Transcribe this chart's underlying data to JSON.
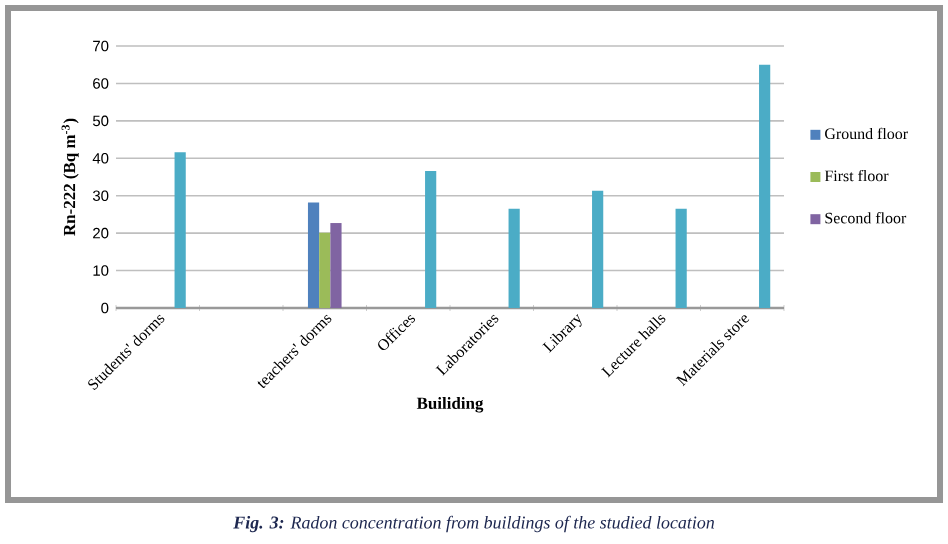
{
  "chart_data": {
    "type": "bar",
    "ylabel": "Rn-222 (Bq m$^{-3}$)",
    "xlabel": "Builiding",
    "categories": [
      "Students' dorms",
      null,
      "teachers' dorms",
      "Offices",
      "Laboratories",
      "Library",
      "Lecture halls",
      "Materials store"
    ],
    "series": [
      {
        "name": "Ground floor",
        "color": "#4f81bd",
        "values": [
          null,
          null,
          28.2,
          null,
          null,
          null,
          null,
          null
        ]
      },
      {
        "name": "First floor",
        "color": "#9bbb59",
        "values": [
          null,
          null,
          20.1,
          null,
          null,
          null,
          null,
          null
        ]
      },
      {
        "name": "Second floor",
        "color": "#8064a2",
        "values": [
          null,
          null,
          22.7,
          null,
          null,
          null,
          null,
          null
        ]
      },
      {
        "color": "#4bacc6",
        "values": [
          41.6,
          null,
          null,
          36.6,
          26.5,
          31.3,
          26.5,
          65.0
        ]
      }
    ],
    "ylim": [
      0,
      70
    ],
    "yticks": [
      0,
      10,
      20,
      30,
      40,
      50,
      60,
      70
    ],
    "grid": "y",
    "legend": "right",
    "annotations": [
      "**Fig. 3:** Radon concentration from buildings of the studied location"
    ]
  }
}
